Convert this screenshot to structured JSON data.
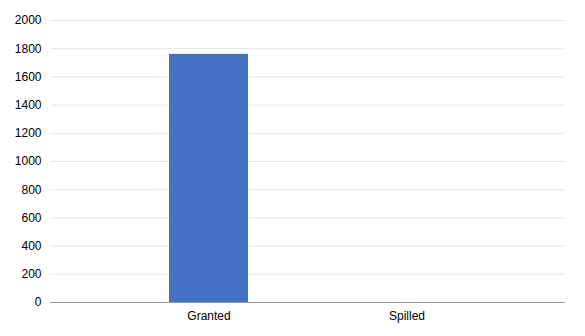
{
  "chart_data": {
    "type": "bar",
    "categories": [
      "Granted",
      "Spilled"
    ],
    "values": [
      1760,
      0
    ],
    "color": "#4472C4",
    "ylim": [
      0,
      2000
    ],
    "yticks": [
      0,
      200,
      400,
      600,
      800,
      1000,
      1200,
      1400,
      1600,
      1800,
      2000
    ],
    "grid": true
  }
}
